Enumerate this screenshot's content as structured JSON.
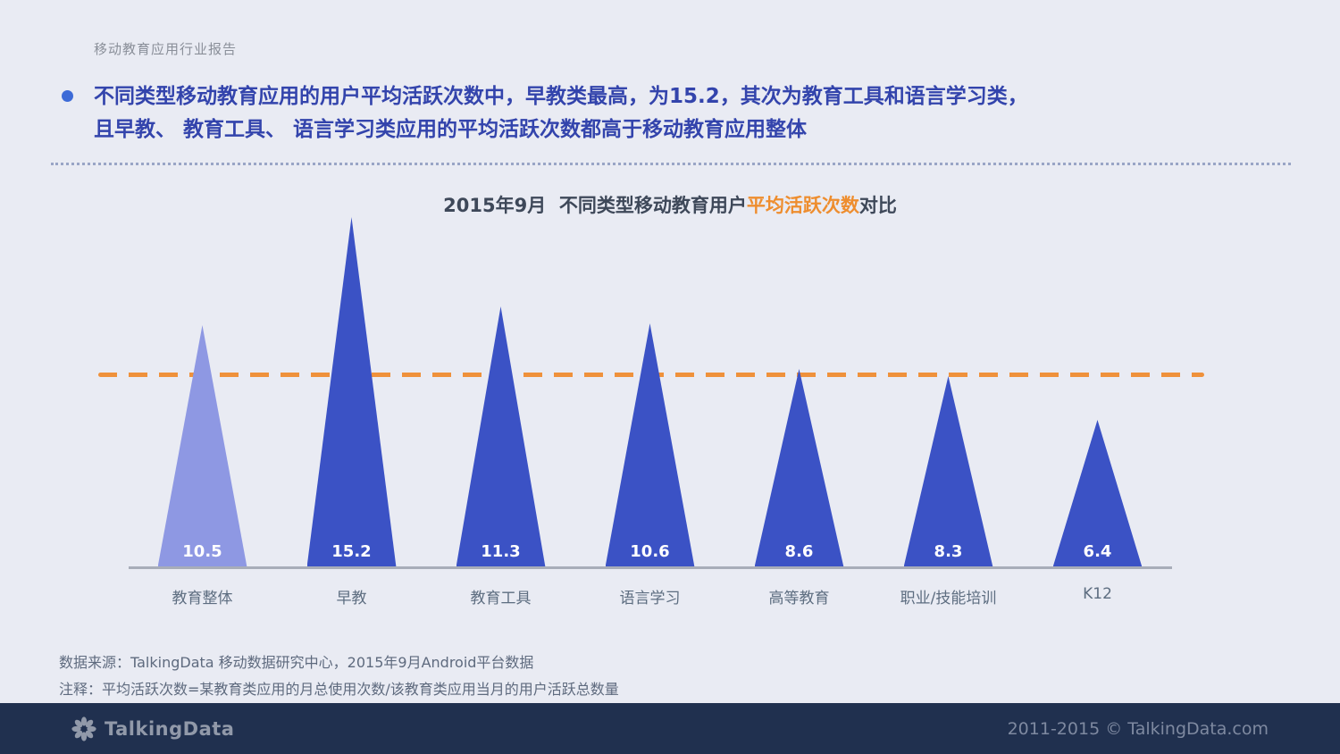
{
  "page": {
    "report_label": "移动教育应用行业报告",
    "footer_source": "数据来源：TalkingData 移动数据研究中心，2015年9月Android平台数据",
    "footer_note": "注释：平均活跃次数=某教育类应用的月总使用次数/该教育类应用当月的用户活跃总数量",
    "footer_brand": "TalkingData",
    "footer_copyright": "2011-2015 © TalkingData.com"
  },
  "headline": {
    "line1": "不同类型移动教育应用的用户平均活跃次数中，早教类最高，为15.2，其次为教育工具和语言学习类，",
    "line2": "且早教、 教育工具、 语言学习类应用的平均活跃次数都高于移动教育应用整体"
  },
  "chart_data": {
    "type": "bar",
    "shape": "triangle",
    "title": "2015年9月  不同类型移动教育用户平均活跃次数对比",
    "title_prefix": "2015年9月  不同类型移动教育用户",
    "title_highlight": "平均活跃次数",
    "title_suffix": "对比",
    "categories": [
      "教育整体",
      "早教",
      "教育工具",
      "语言学习",
      "高等教育",
      "职业/技能培训",
      "K12"
    ],
    "values": [
      10.5,
      15.2,
      11.3,
      10.6,
      8.6,
      8.3,
      6.4
    ],
    "ylim": [
      0,
      16
    ],
    "grid": "off",
    "legend": "none",
    "overall_index": 0,
    "reference_line": {
      "style": "dashed",
      "color": "#ef913b"
    },
    "colors": {
      "primary": "#3b52c5",
      "overall": "#8e98e3",
      "reference": "#ef913b",
      "highlight_text": "#ee8d2e"
    }
  }
}
